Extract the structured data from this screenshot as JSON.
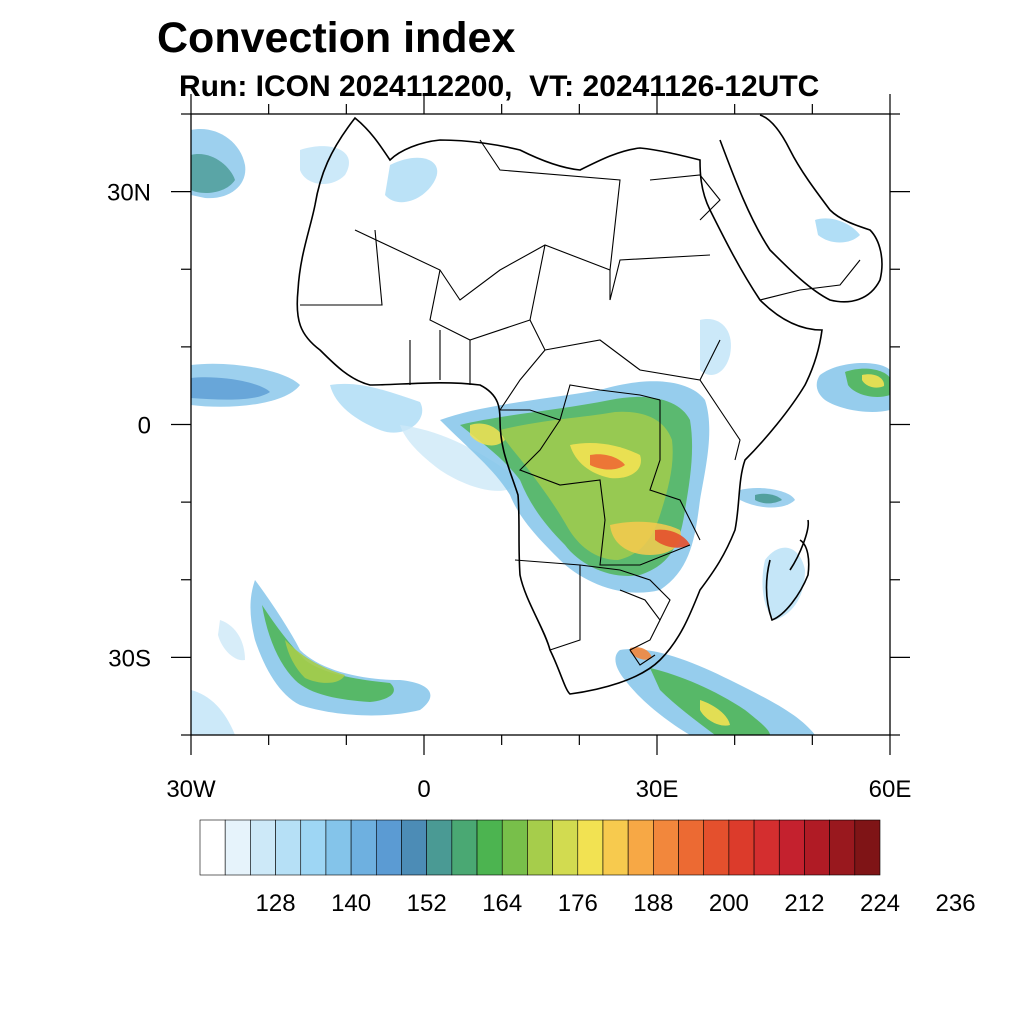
{
  "header": {
    "title": "Convection index",
    "subtitle": "Run: ICON 2024112200,  VT: 20241126-12UTC"
  },
  "map": {
    "lon_range": [
      -30,
      60
    ],
    "lat_range": [
      -40,
      40
    ],
    "lon_ticks": [
      {
        "value": -30,
        "label": "30W"
      },
      {
        "value": 0,
        "label": "0"
      },
      {
        "value": 30,
        "label": "30E"
      },
      {
        "value": 60,
        "label": "60E"
      }
    ],
    "lat_ticks": [
      {
        "value": 30,
        "label": "30N"
      },
      {
        "value": 0,
        "label": "0"
      },
      {
        "value": -30,
        "label": "30S"
      }
    ],
    "minor_tick_step_deg": 10
  },
  "colorbar": {
    "colors": [
      "#ffffff",
      "#e6f3fb",
      "#cde9f8",
      "#b6e0f6",
      "#9ed6f4",
      "#84c4ea",
      "#6eb0e0",
      "#5b9bd3",
      "#4c8cb6",
      "#4a9a94",
      "#4aa873",
      "#4cb450",
      "#78bf4a",
      "#a6cd4b",
      "#d2db50",
      "#f2e252",
      "#f7ca4e",
      "#f7a845",
      "#f2873c",
      "#ec6a33",
      "#e4502d",
      "#dc3b2b",
      "#d42e2f",
      "#c4212e",
      "#b01b25",
      "#99181e",
      "#7f1416"
    ],
    "labels": [
      "128",
      "140",
      "152",
      "164",
      "176",
      "188",
      "200",
      "212",
      "224",
      "236"
    ]
  }
}
